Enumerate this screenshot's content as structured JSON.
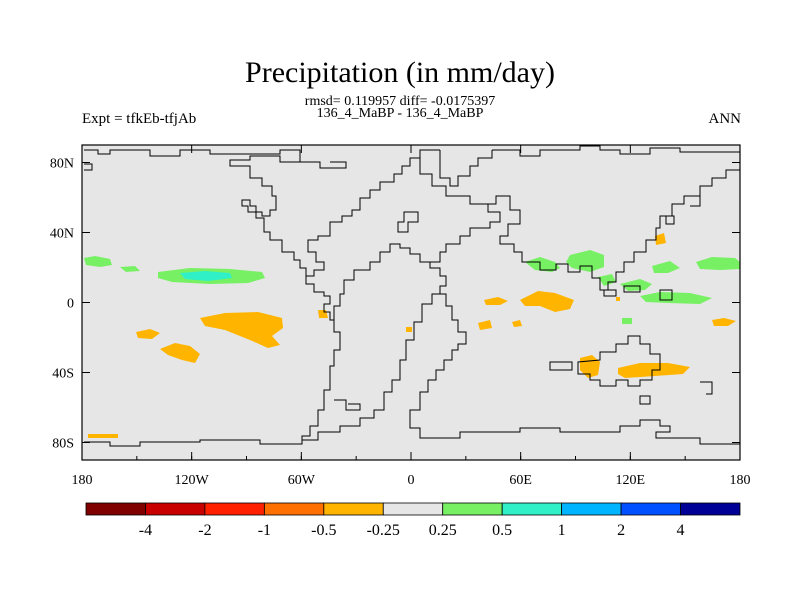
{
  "title": "Precipitation (in mm/day)",
  "stats": "rmsd= 0.119957 diff= -0.0175397",
  "subtitle": "136_4_MaBP - 136_4_MaBP",
  "left_label": "Expt = tfkEb-tfjAb",
  "right_label": "ANN",
  "colors": {
    "background": "#e6e6e6",
    "coast": "#000000"
  },
  "chart_data": {
    "type": "heatmap",
    "x_ticks": [
      "180",
      "120W",
      "60W",
      "0",
      "60E",
      "120E",
      "180"
    ],
    "y_ticks": [
      "80N",
      "40N",
      "0",
      "40S",
      "80S"
    ],
    "xlim": [
      -180,
      180
    ],
    "ylim": [
      -90,
      90
    ],
    "colorbar": {
      "colors": [
        "#800000",
        "#c80000",
        "#ff2000",
        "#ff7000",
        "#ffb400",
        "#e6e6e6",
        "#78f064",
        "#30f0c8",
        "#00b4ff",
        "#0050ff",
        "#000096"
      ],
      "labels": [
        "-4",
        "-2",
        "-1",
        "-0.5",
        "-0.25",
        "0.25",
        "0.5",
        "1",
        "2",
        "4"
      ]
    }
  }
}
